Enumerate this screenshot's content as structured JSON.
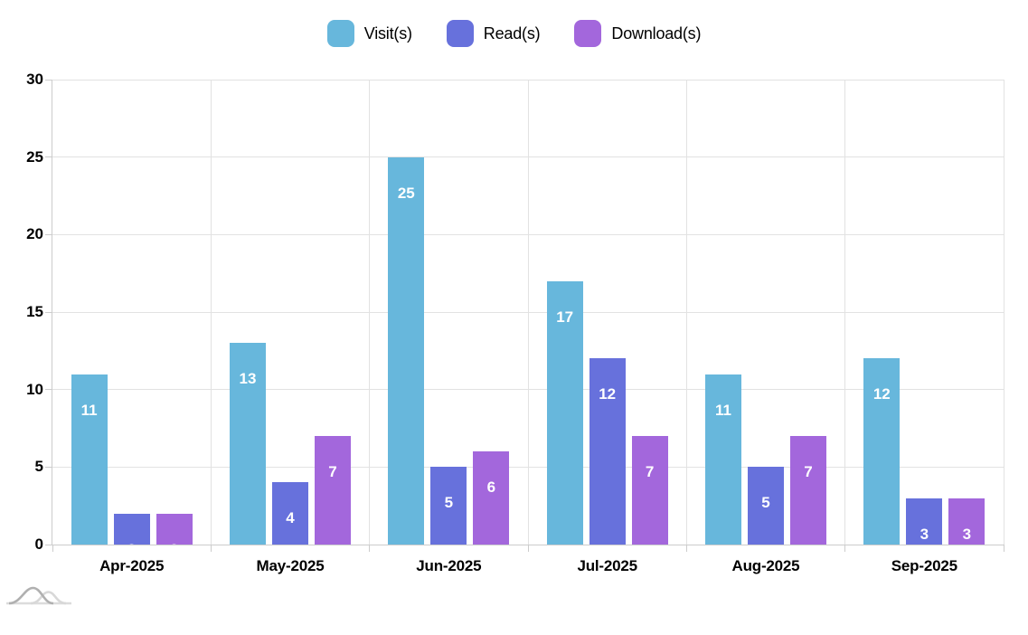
{
  "chart_data": {
    "type": "bar",
    "title": "",
    "categories": [
      "Apr-2025",
      "May-2025",
      "Jun-2025",
      "Jul-2025",
      "Aug-2025",
      "Sep-2025"
    ],
    "series": [
      {
        "name": "Visit(s)",
        "color": "#67B7DC",
        "values": [
          11,
          13,
          25,
          17,
          11,
          12
        ]
      },
      {
        "name": "Read(s)",
        "color": "#6771DC",
        "values": [
          2,
          4,
          5,
          12,
          5,
          3
        ]
      },
      {
        "name": "Download(s)",
        "color": "#A367DC",
        "values": [
          2,
          7,
          6,
          7,
          7,
          3
        ]
      }
    ],
    "xlabel": "",
    "ylabel": "",
    "ylim": [
      0,
      30
    ],
    "yticks": [
      0,
      5,
      10,
      15,
      20,
      25,
      30
    ],
    "grid": true,
    "legend_position": "top",
    "bar_value_labels": "inside-top, white"
  },
  "legend": {
    "items": [
      {
        "label": "Visit(s)",
        "color": "#67B7DC"
      },
      {
        "label": "Read(s)",
        "color": "#6771DC"
      },
      {
        "label": "Download(s)",
        "color": "#A367DC"
      }
    ]
  },
  "watermark": {
    "name": "amcharts-logo",
    "curve_dark": "#b0b0b0",
    "curve_light": "#d8d8d8",
    "baseline": "#dcdcdc"
  },
  "colors": {
    "grid": "#e2e2e2",
    "axis": "#cccccc",
    "text": "#000000",
    "bar_label": "#ffffff",
    "background": "#ffffff"
  }
}
